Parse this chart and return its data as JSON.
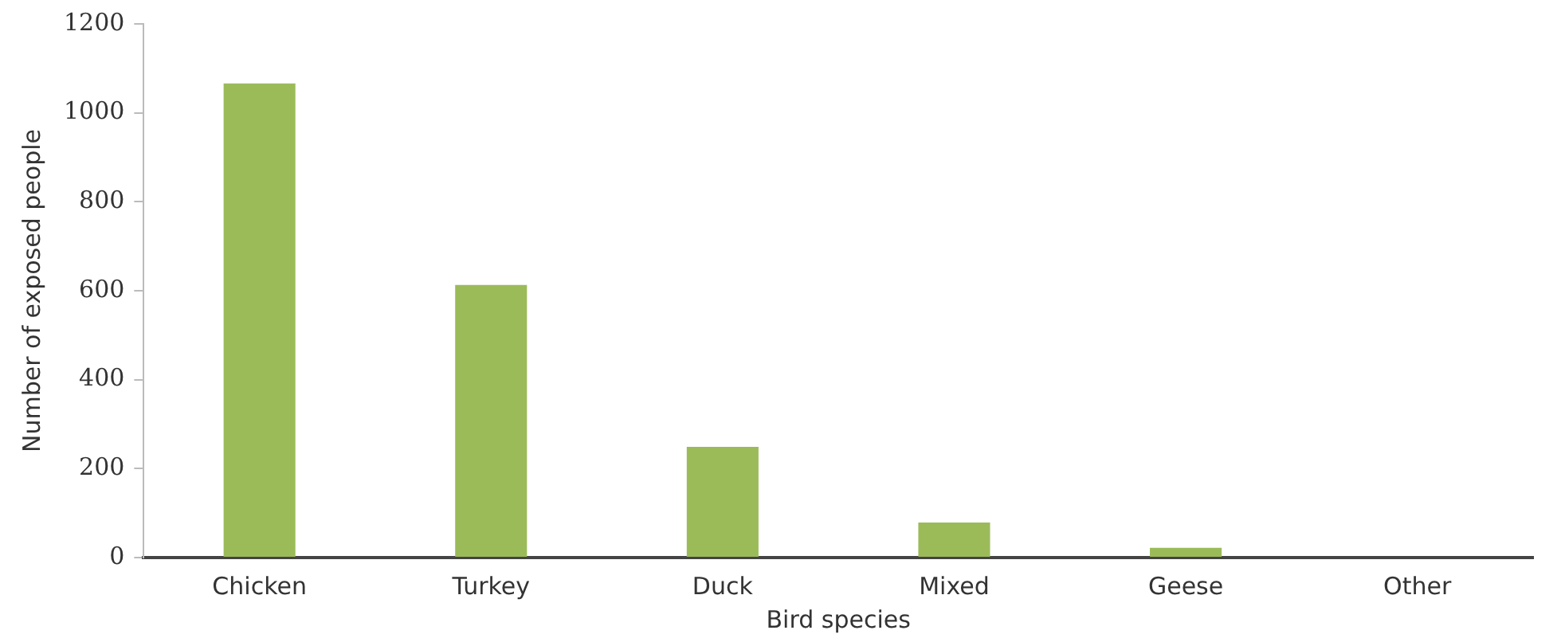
{
  "chart_data": {
    "type": "bar",
    "xlabel": "Bird species",
    "ylabel": "Number of exposed people",
    "categories": [
      "Chicken",
      "Turkey",
      "Duck",
      "Mixed",
      "Geese",
      "Other"
    ],
    "values": [
      1066,
      613,
      249,
      79,
      22,
      0
    ],
    "color": "#9bbb59",
    "ylim": [
      0,
      1200
    ],
    "yticks": [
      0,
      200,
      400,
      600,
      800,
      1000,
      1200
    ],
    "grid": false
  }
}
